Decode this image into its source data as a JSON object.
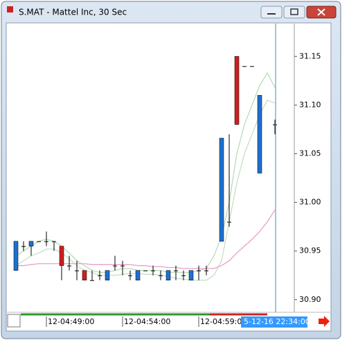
{
  "chart_data": {
    "type": "candlestick",
    "title": "S.MAT - Mattel Inc, 30 Sec",
    "categories": [
      null,
      null,
      null,
      null,
      "12-04:49:00",
      null,
      null,
      null,
      null,
      null,
      null,
      null,
      null,
      null,
      "12-04:54:00",
      null,
      null,
      null,
      null,
      null,
      null,
      null,
      null,
      null,
      "12-04:59:00",
      null,
      null,
      null,
      null,
      null,
      null,
      null,
      null,
      null,
      null
    ],
    "open": [
      30.93,
      30.955,
      30.955,
      30.96,
      30.96,
      30.96,
      30.955,
      30.935,
      30.93,
      30.93,
      30.92,
      30.925,
      30.92,
      30.935,
      30.935,
      30.925,
      30.92,
      30.93,
      30.93,
      30.925,
      30.92,
      30.93,
      30.925,
      30.92,
      30.93,
      30.93,
      null,
      30.96,
      30.98,
      31.15,
      31.14,
      31.14,
      31.03,
      null,
      31.08
    ],
    "high": [
      30.96,
      30.96,
      30.96,
      30.96,
      30.97,
      30.96,
      30.955,
      30.945,
      30.94,
      30.93,
      30.93,
      30.93,
      30.93,
      30.945,
      30.94,
      30.93,
      30.93,
      30.93,
      30.935,
      30.93,
      30.93,
      30.935,
      30.93,
      30.93,
      30.935,
      30.935,
      null,
      31.066,
      31.07,
      31.15,
      31.14,
      31.14,
      31.11,
      null,
      31.085
    ],
    "low": [
      30.93,
      30.95,
      30.945,
      30.96,
      30.955,
      30.95,
      30.92,
      30.93,
      30.92,
      30.92,
      30.92,
      30.92,
      30.92,
      30.93,
      30.925,
      30.92,
      30.92,
      30.93,
      30.925,
      30.92,
      30.92,
      30.92,
      30.92,
      30.92,
      30.92,
      30.925,
      null,
      30.96,
      30.975,
      31.08,
      31.14,
      31.14,
      31.03,
      null,
      31.07
    ],
    "close": [
      30.96,
      30.955,
      30.96,
      30.96,
      30.96,
      30.96,
      30.935,
      30.935,
      30.93,
      30.92,
      30.92,
      30.925,
      30.93,
      30.935,
      30.935,
      30.925,
      30.93,
      30.93,
      30.93,
      30.925,
      30.93,
      30.93,
      30.925,
      30.93,
      30.93,
      30.93,
      null,
      31.066,
      30.98,
      31.08,
      31.14,
      31.14,
      31.11,
      null,
      31.08
    ],
    "up_color": "#1f6fd0",
    "down_color": "#cc1f1f",
    "flat_color": "#000000",
    "series": [
      {
        "color": "#b8dcb8",
        "values": [
          30.945,
          30.95,
          30.955,
          30.96,
          30.962,
          30.96,
          30.955,
          30.948,
          30.94,
          30.935,
          30.93,
          30.928,
          30.928,
          30.93,
          30.932,
          30.932,
          30.93,
          30.93,
          30.93,
          30.93,
          30.928,
          30.928,
          30.928,
          30.928,
          30.93,
          30.932,
          30.945,
          30.965,
          31.0,
          31.05,
          31.08,
          31.1,
          31.12,
          31.133,
          31.118
        ]
      },
      {
        "color": "#c4e0c4",
        "values": [
          30.935,
          30.94,
          30.945,
          30.948,
          30.952,
          30.952,
          30.948,
          30.942,
          30.935,
          30.93,
          30.928,
          30.925,
          30.925,
          30.925,
          30.926,
          30.927,
          30.927,
          30.926,
          30.926,
          30.925,
          30.924,
          30.922,
          30.921,
          30.92,
          30.92,
          30.92,
          30.925,
          30.94,
          30.98,
          31.02,
          31.05,
          31.07,
          31.09,
          31.105,
          31.102
        ]
      },
      {
        "color": "#e8a0c8",
        "values": [
          30.935,
          30.935,
          30.936,
          30.937,
          30.937,
          30.937,
          30.937,
          30.937,
          30.937,
          30.937,
          30.936,
          30.936,
          30.936,
          30.936,
          30.936,
          30.936,
          30.935,
          30.935,
          30.934,
          30.934,
          30.933,
          30.933,
          30.932,
          30.932,
          30.932,
          30.932,
          30.932,
          30.935,
          30.94,
          30.948,
          30.955,
          30.962,
          30.97,
          30.98,
          30.992
        ]
      }
    ],
    "ylim": [
      30.887,
      31.183
    ],
    "yticks": [
      {
        "value": 30.9,
        "label": "30.90"
      },
      30.95,
      {
        "value": 31,
        "label": "31.00"
      },
      31.05,
      {
        "value": 31.1,
        "label": "31.10"
      },
      31.15
    ],
    "cursor_label": "5-12-16 22:34:00"
  }
}
